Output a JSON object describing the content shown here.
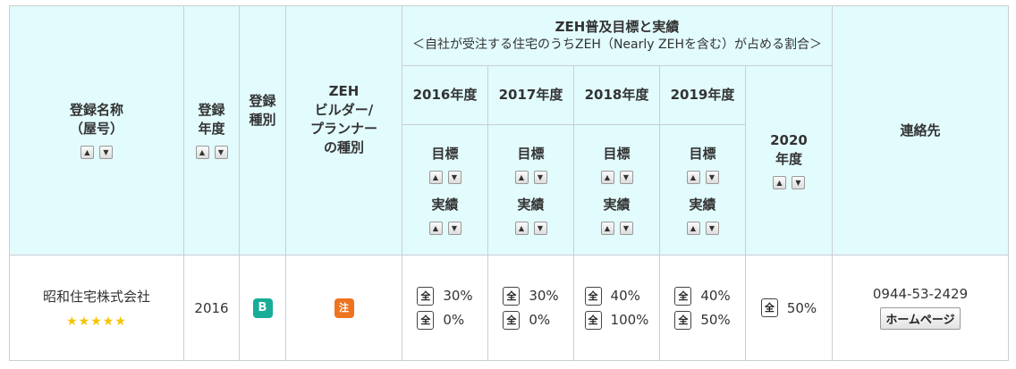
{
  "headers": {
    "name": [
      "登録名称",
      "（屋号）"
    ],
    "year": [
      "登録",
      "年度"
    ],
    "type": [
      "登録",
      "種別"
    ],
    "builder": [
      "ZEH",
      "ビルダー/",
      "プランナー",
      "の種別"
    ],
    "zeh_title": "ZEH普及目標と実績",
    "zeh_subtitle": "＜自社が受注する住宅のうちZEH（Nearly ZEHを含む）が占める割合＞",
    "years": [
      "2016年度",
      "2017年度",
      "2018年度",
      "2019年度"
    ],
    "target_label": "目標",
    "actual_label": "実績",
    "year_2020": [
      "2020",
      "年度"
    ],
    "contact": "連絡先",
    "sort_up": "▲",
    "sort_down": "▼"
  },
  "rows": [
    {
      "name": "昭和住宅株式会社",
      "stars": "★★★★★",
      "rating": 5,
      "reg_year": "2016",
      "reg_type": "B",
      "builder_type": "注",
      "zen_label": "全",
      "fy2016": {
        "target": "30%",
        "actual": "0%"
      },
      "fy2017": {
        "target": "30%",
        "actual": "0%"
      },
      "fy2018": {
        "target": "40%",
        "actual": "100%"
      },
      "fy2019": {
        "target": "40%",
        "actual": "50%"
      },
      "fy2020": "50%",
      "tel": "0944-53-2429",
      "homepage": "ホームページ"
    }
  ]
}
